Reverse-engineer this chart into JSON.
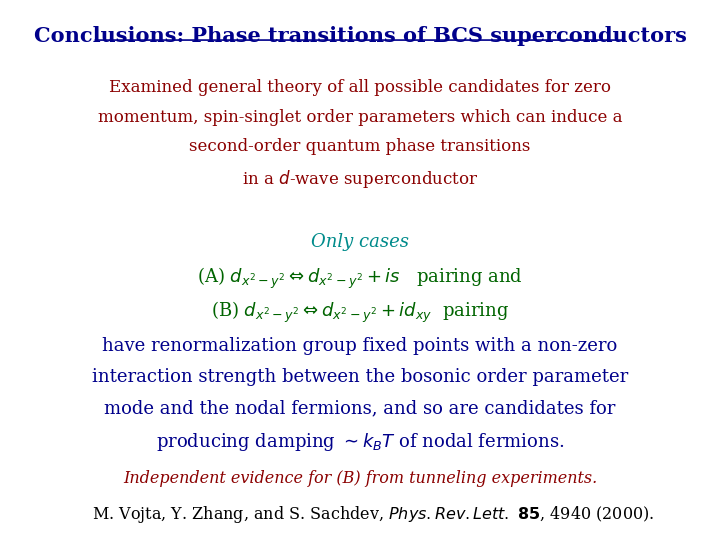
{
  "background_color": "#ffffff",
  "title": "Conclusions: Phase transitions of BCS superconductors",
  "title_color": "#00008B",
  "title_fontsize": 15,
  "para1_lines": [
    "Examined general theory of all possible candidates for zero",
    "momentum, spin-singlet order parameters which can induce a",
    "second-order quantum phase transitions",
    "in a $\\it{d}$-wave superconductor"
  ],
  "para1_color": "#8B0000",
  "para1_fontsize": 12,
  "only_cases_text": "Only cases",
  "only_cases_color": "#008B8B",
  "only_cases_fontsize": 13,
  "eq_color": "#006400",
  "eq_fontsize": 13,
  "eq_a": "(A) $d_{x^2-y^2} \\Leftrightarrow d_{x^2-y^2} + is$   pairing and",
  "eq_b": "(B) $d_{x^2-y^2} \\Leftrightarrow d_{x^2-y^2} + id_{xy}$  pairing",
  "para2_lines": [
    "have renormalization group fixed points with a non-zero",
    "interaction strength between the bosonic order parameter",
    "mode and the nodal fermions, and so are candidates for",
    "producing damping $\\sim k_BT$ of nodal fermions."
  ],
  "para2_color": "#00008B",
  "para2_fontsize": 13,
  "indep_line": "Independent evidence for (B) from tunneling experiments.",
  "indep_color": "#8B0000",
  "indep_fontsize": 11.5,
  "ref_line": "M. Vojta, Y. Zhang, and S. Sachdev, $\\it{Phys. Rev. Lett.}$ $\\bf{85}$, 4940 (2000).",
  "ref_fontsize": 11.5,
  "ref_color": "#000000"
}
